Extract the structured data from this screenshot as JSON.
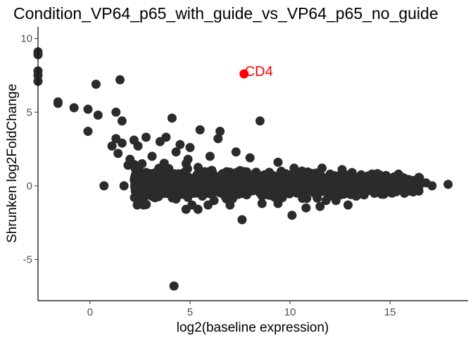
{
  "chart_data": {
    "type": "scatter",
    "title": "Condition_VP64_p65_with_guide_vs_VP64_p65_no_guide",
    "xlabel": "log2(baseline expression)",
    "ylabel": "Shrunken log2FoldChange",
    "xlim": [
      -2.6,
      18.9
    ],
    "ylim": [
      -7.8,
      10.8
    ],
    "x_ticks": [
      0,
      5,
      10,
      15
    ],
    "y_ticks": [
      -5,
      0,
      5,
      10
    ],
    "grid": false,
    "colors": {
      "points": "#2b2b2b",
      "highlight": "#ff0000",
      "axis": "#000000",
      "tick_label": "#4d4d4d"
    },
    "highlight": {
      "label": "CD4",
      "x": 7.7,
      "y": 7.6
    },
    "points": [
      [
        -2.6,
        9.1
      ],
      [
        -2.6,
        8.9
      ],
      [
        -2.6,
        7.8
      ],
      [
        -2.6,
        7.5
      ],
      [
        -2.6,
        7.1
      ],
      [
        0.3,
        6.9
      ],
      [
        1.5,
        7.2
      ],
      [
        -1.6,
        5.7
      ],
      [
        -1.6,
        5.6
      ],
      [
        -0.8,
        5.3
      ],
      [
        -0.1,
        5.2
      ],
      [
        0.4,
        4.8
      ],
      [
        1.3,
        5.0
      ],
      [
        4.1,
        4.6
      ],
      [
        8.5,
        4.4
      ],
      [
        -0.1,
        3.7
      ],
      [
        1.6,
        4.4
      ],
      [
        1.3,
        3.2
      ],
      [
        1.1,
        2.7
      ],
      [
        1.6,
        2.9
      ],
      [
        1.4,
        2.2
      ],
      [
        2.2,
        3.1
      ],
      [
        2.8,
        3.3
      ],
      [
        2.4,
        2.7
      ],
      [
        3.8,
        3.3
      ],
      [
        3.5,
        3.0
      ],
      [
        4.5,
        2.8
      ],
      [
        5.5,
        3.8
      ],
      [
        6.5,
        3.7
      ],
      [
        6.4,
        3.2
      ],
      [
        7.3,
        2.3
      ],
      [
        5.0,
        2.6
      ],
      [
        4.3,
        2.3
      ],
      [
        3.1,
        2.0
      ],
      [
        2.0,
        1.8
      ],
      [
        1.9,
        1.4
      ],
      [
        2.6,
        1.5
      ],
      [
        3.7,
        1.5
      ],
      [
        4.9,
        1.8
      ],
      [
        6.0,
        2.0
      ],
      [
        8.0,
        1.9
      ],
      [
        9.4,
        1.6
      ],
      [
        10.2,
        1.2
      ],
      [
        10.6,
        1.0
      ],
      [
        12.6,
        1.1
      ],
      [
        11.6,
        1.2
      ],
      [
        13.1,
        0.9
      ],
      [
        14.1,
        0.8
      ],
      [
        14.8,
        0.7
      ],
      [
        15.2,
        0.6
      ],
      [
        15.8,
        0.4
      ],
      [
        16.4,
        0.1
      ],
      [
        16.8,
        0.2
      ],
      [
        17.1,
        0.0
      ],
      [
        17.9,
        0.1
      ],
      [
        0.7,
        0.0
      ],
      [
        1.7,
        0.0
      ],
      [
        2.5,
        0.1
      ],
      [
        4.0,
        -0.4
      ],
      [
        3.4,
        -0.3
      ],
      [
        4.3,
        -0.9
      ],
      [
        5.1,
        -1.3
      ],
      [
        5.4,
        -1.6
      ],
      [
        4.8,
        -1.6
      ],
      [
        5.9,
        -1.3
      ],
      [
        6.2,
        -1.0
      ],
      [
        7.0,
        -1.3
      ],
      [
        7.6,
        -2.3
      ],
      [
        8.6,
        -1.2
      ],
      [
        9.4,
        -1.2
      ],
      [
        10.1,
        -2.0
      ],
      [
        10.8,
        -1.5
      ],
      [
        11.5,
        -1.4
      ],
      [
        12.3,
        -1.0
      ],
      [
        13.3,
        -0.7
      ],
      [
        11.8,
        -1.0
      ],
      [
        12.9,
        -1.3
      ],
      [
        14.2,
        -0.4
      ],
      [
        15.1,
        -0.5
      ],
      [
        4.2,
        -6.8
      ]
    ],
    "dense_region": {
      "x_range": [
        2.2,
        16.5
      ],
      "center_y": 0.1,
      "spread_y": [
        0.9,
        0.4
      ],
      "count": 1600
    }
  }
}
